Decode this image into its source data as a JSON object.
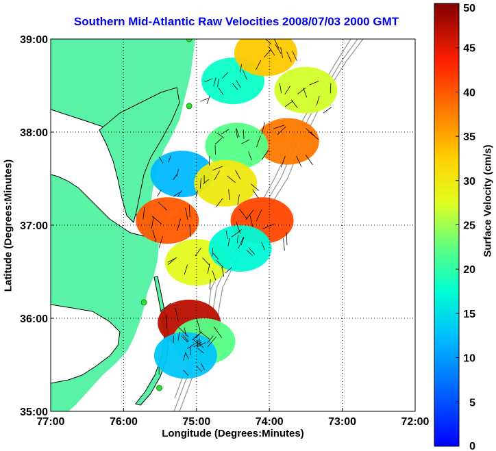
{
  "chart_data": {
    "type": "heatmap",
    "title": "Southern Mid-Atlantic Raw Velocities 2008/07/03 2000 GMT",
    "xlabel": "Longitude (Degrees:Minutes)",
    "ylabel": "Latitude (Degrees:Minutes)",
    "x_ticks": [
      "77:00",
      "76:00",
      "75:00",
      "74:00",
      "73:00",
      "72:00"
    ],
    "y_ticks": [
      "39:00",
      "38:00",
      "37:00",
      "36:00",
      "35:00"
    ],
    "xlim": [
      -77,
      -72
    ],
    "ylim": [
      35,
      39
    ],
    "grid": true,
    "colorbar": {
      "label": "Surface Velocity (cm/s)",
      "ticks": [
        "0",
        "5",
        "10",
        "15",
        "20",
        "25",
        "30",
        "35",
        "40",
        "45",
        "50"
      ],
      "range": [
        0,
        50
      ],
      "colormap": "jet"
    },
    "land_color": "#5af2a6",
    "ocean_color": "#ffffff",
    "station_color": "#33dd33",
    "stations": [
      {
        "lon": -75.1,
        "lat": 39.0
      },
      {
        "lon": -75.1,
        "lat": 38.28
      },
      {
        "lon": -75.72,
        "lat": 36.17
      },
      {
        "lon": -75.51,
        "lat": 35.25
      }
    ],
    "velocity_regions": [
      {
        "lon": -74.5,
        "lat": 38.55,
        "speed": 18
      },
      {
        "lon": -74.05,
        "lat": 38.85,
        "speed": 33
      },
      {
        "lon": -73.5,
        "lat": 38.45,
        "speed": 27
      },
      {
        "lon": -73.75,
        "lat": 37.9,
        "speed": 38
      },
      {
        "lon": -74.45,
        "lat": 37.85,
        "speed": 22
      },
      {
        "lon": -75.2,
        "lat": 37.55,
        "speed": 12
      },
      {
        "lon": -74.6,
        "lat": 37.45,
        "speed": 30
      },
      {
        "lon": -75.4,
        "lat": 37.05,
        "speed": 40
      },
      {
        "lon": -74.1,
        "lat": 37.05,
        "speed": 41
      },
      {
        "lon": -75.0,
        "lat": 36.6,
        "speed": 28
      },
      {
        "lon": -74.4,
        "lat": 36.75,
        "speed": 17
      },
      {
        "lon": -75.1,
        "lat": 35.95,
        "speed": 47
      },
      {
        "lon": -74.9,
        "lat": 35.75,
        "speed": 22
      },
      {
        "lon": -75.15,
        "lat": 35.6,
        "speed": 13
      }
    ]
  }
}
